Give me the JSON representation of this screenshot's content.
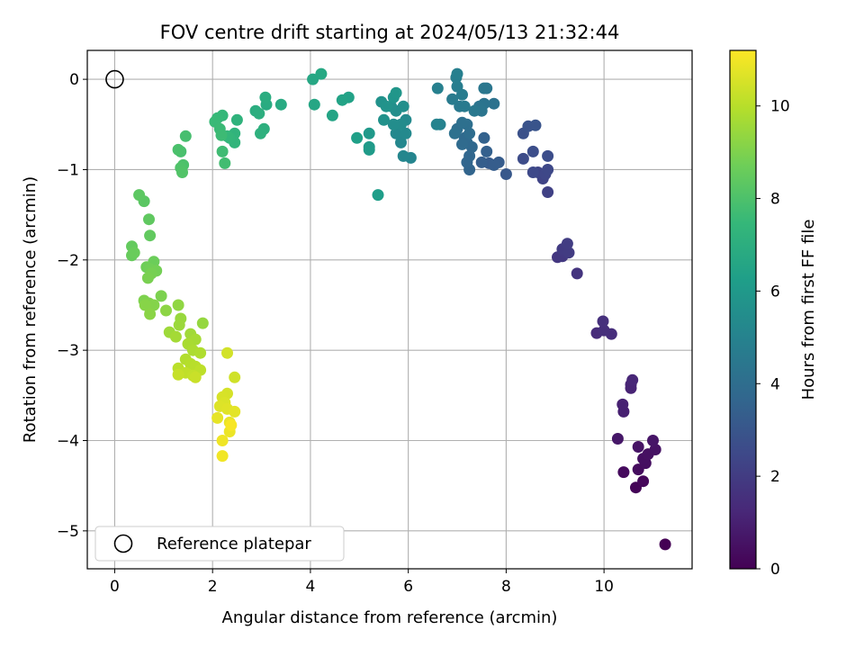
{
  "chart_data": {
    "type": "scatter",
    "title": "FOV centre drift starting at 2024/05/13 21:32:44",
    "xlabel": "Angular distance from reference (arcmin)",
    "ylabel": "Rotation from reference (arcmin)",
    "xlim": [
      -0.56,
      11.8
    ],
    "ylim": [
      -5.42,
      0.32
    ],
    "x_ticks": [
      0,
      2,
      4,
      6,
      8,
      10
    ],
    "y_ticks": [
      0,
      -1,
      -2,
      -3,
      -4,
      -5
    ],
    "x_tick_labels": [
      "0",
      "2",
      "4",
      "6",
      "8",
      "10"
    ],
    "y_tick_labels": [
      "0",
      "−1",
      "−2",
      "−3",
      "−4",
      "−5"
    ],
    "grid": true,
    "legend": {
      "position": "lower-left",
      "entries": [
        {
          "label": "Reference platepar",
          "marker": "open-circle",
          "color": "#000000"
        }
      ]
    },
    "reference_point": {
      "x": 0,
      "y": 0
    },
    "colorbar": {
      "label": "Hours from first FF file",
      "range": [
        0,
        11.2
      ],
      "ticks": [
        0,
        2,
        4,
        6,
        8,
        10
      ],
      "tick_labels": [
        "0",
        "2",
        "4",
        "6",
        "8",
        "10"
      ],
      "colormap": "viridis",
      "stops": [
        "#440154",
        "#482878",
        "#3e4989",
        "#31688e",
        "#26828e",
        "#1f9e89",
        "#35b779",
        "#6ece58",
        "#b5de2b",
        "#fde725"
      ]
    },
    "series": [
      {
        "points": [
          [
            11.25,
            -5.15,
            0.0
          ],
          [
            10.65,
            -4.52,
            0.1
          ],
          [
            10.8,
            -4.45,
            0.2
          ],
          [
            10.4,
            -4.35,
            0.3
          ],
          [
            10.7,
            -4.32,
            0.35
          ],
          [
            10.85,
            -4.25,
            0.4
          ],
          [
            10.8,
            -4.2,
            0.45
          ],
          [
            10.9,
            -4.15,
            0.5
          ],
          [
            11.05,
            -4.1,
            0.55
          ],
          [
            10.7,
            -4.07,
            0.6
          ],
          [
            11.0,
            -4.0,
            0.65
          ],
          [
            10.28,
            -3.98,
            0.7
          ],
          [
            10.4,
            -3.68,
            1.0
          ],
          [
            10.38,
            -3.6,
            1.05
          ],
          [
            10.55,
            -3.42,
            1.1
          ],
          [
            10.55,
            -3.38,
            1.15
          ],
          [
            10.58,
            -3.33,
            1.2
          ],
          [
            9.85,
            -2.81,
            1.4
          ],
          [
            10.15,
            -2.82,
            1.45
          ],
          [
            10.0,
            -2.78,
            1.5
          ],
          [
            9.98,
            -2.68,
            1.55
          ],
          [
            9.45,
            -2.15,
            1.7
          ],
          [
            9.05,
            -1.97,
            1.8
          ],
          [
            9.15,
            -1.96,
            1.85
          ],
          [
            9.2,
            -1.92,
            1.9
          ],
          [
            9.15,
            -1.88,
            1.95
          ],
          [
            9.28,
            -1.92,
            2.0
          ],
          [
            9.25,
            -1.82,
            2.05
          ],
          [
            8.85,
            -1.25,
            2.2
          ],
          [
            8.75,
            -1.1,
            2.3
          ],
          [
            8.65,
            -1.03,
            2.35
          ],
          [
            8.8,
            -1.05,
            2.4
          ],
          [
            8.85,
            -1.0,
            2.45
          ],
          [
            8.55,
            -1.03,
            2.5
          ],
          [
            8.35,
            -0.88,
            2.6
          ],
          [
            8.85,
            -0.85,
            2.65
          ],
          [
            8.55,
            -0.8,
            2.7
          ],
          [
            8.35,
            -0.6,
            2.8
          ],
          [
            8.45,
            -0.52,
            2.9
          ],
          [
            8.6,
            -0.51,
            2.95
          ],
          [
            8.0,
            -1.05,
            3.1
          ],
          [
            7.65,
            -0.93,
            3.2
          ],
          [
            7.85,
            -0.92,
            3.25
          ],
          [
            7.75,
            -0.95,
            3.3
          ],
          [
            7.5,
            -0.92,
            3.35
          ],
          [
            7.6,
            -0.8,
            3.4
          ],
          [
            7.55,
            -0.65,
            3.5
          ],
          [
            7.25,
            -1.0,
            3.6
          ],
          [
            7.2,
            -0.92,
            3.65
          ],
          [
            7.25,
            -0.85,
            3.7
          ],
          [
            7.3,
            -0.75,
            3.75
          ],
          [
            7.2,
            -0.7,
            3.8
          ],
          [
            7.15,
            -0.65,
            3.85
          ],
          [
            7.1,
            -0.72,
            3.9
          ],
          [
            7.25,
            -0.6,
            3.95
          ],
          [
            7.0,
            -0.55,
            4.0
          ],
          [
            7.2,
            -0.5,
            4.05
          ],
          [
            7.1,
            -0.48,
            4.1
          ],
          [
            6.95,
            -0.6,
            4.15
          ],
          [
            7.75,
            -0.27,
            4.2
          ],
          [
            7.55,
            -0.27,
            4.25
          ],
          [
            7.45,
            -0.3,
            4.3
          ],
          [
            7.5,
            -0.35,
            4.35
          ],
          [
            7.6,
            -0.1,
            4.4
          ],
          [
            7.55,
            -0.1,
            4.45
          ],
          [
            7.35,
            -0.35,
            4.5
          ],
          [
            7.05,
            -0.3,
            4.55
          ],
          [
            7.15,
            -0.3,
            4.6
          ],
          [
            6.9,
            -0.22,
            4.65
          ],
          [
            7.1,
            -0.17,
            4.7
          ],
          [
            7.0,
            -0.08,
            4.75
          ],
          [
            6.98,
            0.02,
            4.8
          ],
          [
            7.0,
            0.06,
            4.85
          ],
          [
            6.6,
            -0.1,
            4.9
          ],
          [
            6.65,
            -0.5,
            4.95
          ],
          [
            6.58,
            -0.5,
            5.0
          ],
          [
            6.05,
            -0.87,
            5.1
          ],
          [
            5.9,
            -0.85,
            5.15
          ],
          [
            5.85,
            -0.7,
            5.2
          ],
          [
            5.75,
            -0.6,
            5.25
          ],
          [
            5.95,
            -0.6,
            5.3
          ],
          [
            5.95,
            -0.45,
            5.35
          ],
          [
            5.85,
            -0.5,
            5.4
          ],
          [
            5.7,
            -0.5,
            5.45
          ],
          [
            5.75,
            -0.35,
            5.5
          ],
          [
            5.9,
            -0.3,
            5.55
          ],
          [
            5.65,
            -0.3,
            5.6
          ],
          [
            5.5,
            -0.45,
            5.65
          ],
          [
            5.45,
            -0.25,
            5.7
          ],
          [
            5.55,
            -0.3,
            5.75
          ],
          [
            5.7,
            -0.2,
            5.8
          ],
          [
            5.75,
            -0.15,
            5.85
          ],
          [
            5.2,
            -0.6,
            6.0
          ],
          [
            5.2,
            -0.75,
            6.05
          ],
          [
            5.2,
            -0.78,
            6.1
          ],
          [
            5.38,
            -1.28,
            6.2
          ],
          [
            4.95,
            -0.65,
            6.3
          ],
          [
            4.78,
            -0.2,
            6.4
          ],
          [
            4.65,
            -0.23,
            6.45
          ],
          [
            4.45,
            -0.4,
            6.5
          ],
          [
            4.08,
            -0.28,
            6.6
          ],
          [
            4.05,
            0.0,
            6.65
          ],
          [
            4.22,
            0.06,
            6.7
          ],
          [
            3.4,
            -0.28,
            6.8
          ],
          [
            3.1,
            -0.28,
            6.85
          ],
          [
            3.08,
            -0.2,
            6.9
          ],
          [
            2.88,
            -0.35,
            6.95
          ],
          [
            2.95,
            -0.38,
            7.0
          ],
          [
            3.05,
            -0.55,
            7.05
          ],
          [
            2.98,
            -0.6,
            7.1
          ],
          [
            2.5,
            -0.45,
            7.2
          ],
          [
            2.45,
            -0.6,
            7.25
          ],
          [
            2.45,
            -0.7,
            7.3
          ],
          [
            2.35,
            -0.65,
            7.35
          ],
          [
            2.3,
            -0.63,
            7.4
          ],
          [
            2.2,
            -0.4,
            7.45
          ],
          [
            2.1,
            -0.43,
            7.5
          ],
          [
            2.05,
            -0.47,
            7.55
          ],
          [
            2.15,
            -0.55,
            7.6
          ],
          [
            2.18,
            -0.62,
            7.65
          ],
          [
            2.2,
            -0.8,
            7.7
          ],
          [
            2.25,
            -0.93,
            7.75
          ],
          [
            1.45,
            -0.63,
            7.85
          ],
          [
            1.35,
            -0.8,
            7.9
          ],
          [
            1.3,
            -0.78,
            7.95
          ],
          [
            1.4,
            -0.95,
            8.0
          ],
          [
            1.35,
            -0.98,
            8.05
          ],
          [
            1.38,
            -1.03,
            8.1
          ],
          [
            0.6,
            -1.35,
            8.3
          ],
          [
            0.5,
            -1.28,
            8.35
          ],
          [
            0.7,
            -1.55,
            8.4
          ],
          [
            0.72,
            -1.73,
            8.45
          ],
          [
            0.35,
            -1.85,
            8.5
          ],
          [
            0.35,
            -1.95,
            8.55
          ],
          [
            0.4,
            -1.92,
            8.6
          ],
          [
            0.8,
            -2.02,
            8.65
          ],
          [
            0.65,
            -2.08,
            8.7
          ],
          [
            0.72,
            -2.1,
            8.75
          ],
          [
            0.85,
            -2.12,
            8.8
          ],
          [
            0.75,
            -2.15,
            8.85
          ],
          [
            0.68,
            -2.2,
            8.9
          ],
          [
            0.95,
            -2.4,
            8.95
          ],
          [
            0.6,
            -2.45,
            9.0
          ],
          [
            0.7,
            -2.48,
            9.05
          ],
          [
            0.8,
            -2.5,
            9.1
          ],
          [
            0.62,
            -2.5,
            9.15
          ],
          [
            0.72,
            -2.6,
            9.2
          ],
          [
            1.05,
            -2.56,
            9.25
          ],
          [
            1.3,
            -2.5,
            9.3
          ],
          [
            1.8,
            -2.7,
            9.4
          ],
          [
            1.35,
            -2.65,
            9.45
          ],
          [
            1.32,
            -2.72,
            9.5
          ],
          [
            1.12,
            -2.8,
            9.55
          ],
          [
            1.55,
            -2.82,
            9.6
          ],
          [
            1.25,
            -2.85,
            9.65
          ],
          [
            1.65,
            -2.88,
            9.7
          ],
          [
            1.5,
            -2.93,
            9.75
          ],
          [
            1.6,
            -3.0,
            9.8
          ],
          [
            1.75,
            -3.03,
            9.85
          ],
          [
            1.45,
            -3.1,
            9.9
          ],
          [
            1.55,
            -3.15,
            9.95
          ],
          [
            1.65,
            -3.18,
            10.0
          ],
          [
            1.3,
            -3.2,
            10.05
          ],
          [
            1.75,
            -3.22,
            10.1
          ],
          [
            1.45,
            -3.25,
            10.15
          ],
          [
            1.6,
            -3.28,
            10.2
          ],
          [
            1.3,
            -3.27,
            10.25
          ],
          [
            1.65,
            -3.3,
            10.3
          ],
          [
            2.45,
            -3.3,
            10.4
          ],
          [
            2.3,
            -3.03,
            10.45
          ],
          [
            2.3,
            -3.48,
            10.5
          ],
          [
            2.2,
            -3.52,
            10.55
          ],
          [
            2.25,
            -3.58,
            10.6
          ],
          [
            2.15,
            -3.62,
            10.65
          ],
          [
            2.3,
            -3.65,
            10.7
          ],
          [
            2.45,
            -3.68,
            10.75
          ],
          [
            2.1,
            -3.75,
            10.8
          ],
          [
            2.35,
            -3.8,
            10.85
          ],
          [
            2.35,
            -3.9,
            10.9
          ],
          [
            2.2,
            -4.0,
            10.95
          ],
          [
            2.2,
            -4.17,
            11.0
          ],
          [
            2.38,
            -3.83,
            11.1
          ]
        ]
      }
    ]
  }
}
